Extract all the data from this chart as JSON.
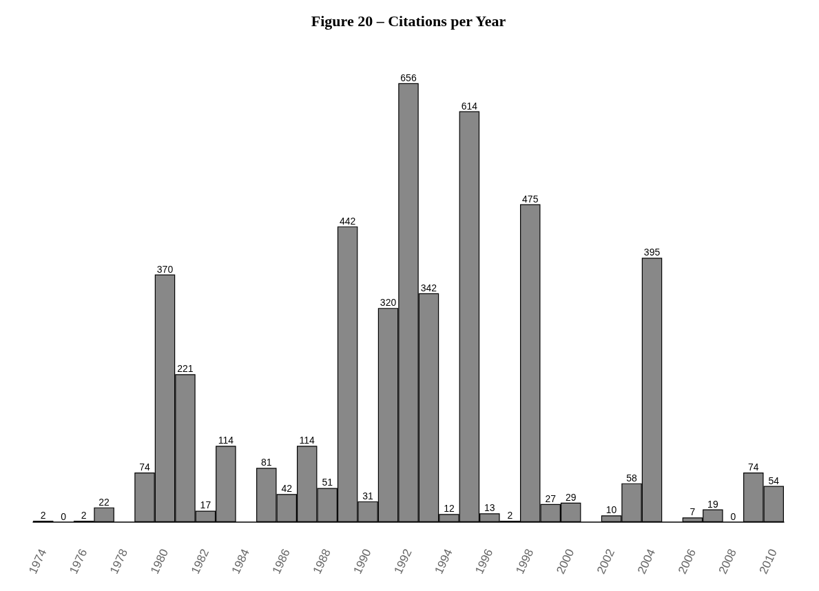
{
  "chart_data": {
    "type": "bar",
    "title": "Figure 20 – Citations per Year",
    "categories": [
      "1974",
      null,
      "1976",
      null,
      "1978",
      null,
      "1980",
      null,
      "1982",
      null,
      "1984",
      null,
      "1986",
      null,
      "1988",
      null,
      "1990",
      null,
      "1992",
      null,
      "1994",
      null,
      "1996",
      null,
      "1998",
      null,
      "2000",
      null,
      "2002",
      null,
      "2004",
      null,
      "2006",
      null,
      "2008",
      null,
      "2010"
    ],
    "values": [
      2,
      0,
      2,
      22,
      null,
      74,
      370,
      221,
      17,
      114,
      null,
      81,
      42,
      114,
      51,
      442,
      31,
      320,
      656,
      342,
      12,
      614,
      13,
      2,
      475,
      27,
      29,
      null,
      10,
      58,
      395,
      null,
      7,
      19,
      0,
      74,
      54
    ],
    "color": "#888888",
    "data_labels": true,
    "grid": false,
    "tick_labels": "x"
  }
}
